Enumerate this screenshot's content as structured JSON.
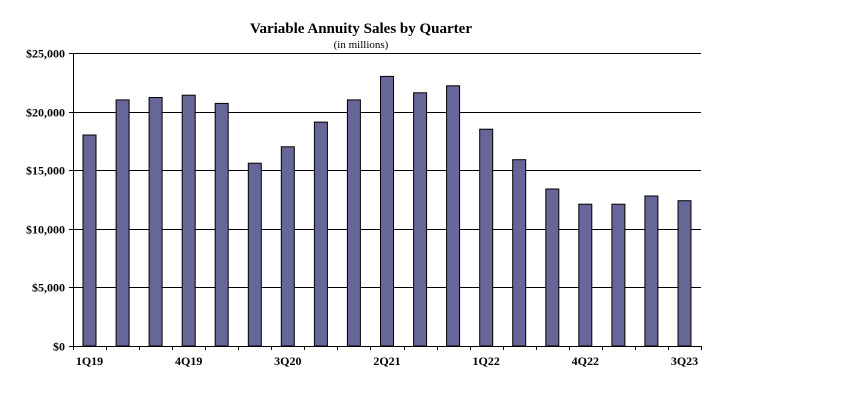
{
  "chart_data": {
    "type": "bar",
    "title": "Variable Annuity Sales by Quarter",
    "subtitle": "(in millions)",
    "xlabel": "",
    "ylabel": "",
    "ylim": [
      0,
      25000
    ],
    "yticks": [
      0,
      5000,
      10000,
      15000,
      20000,
      25000
    ],
    "ytick_labels": [
      "$0",
      "$5,000",
      "$10,000",
      "$15,000",
      "$20,000",
      "$25,000"
    ],
    "grid": "horizontal",
    "legend": "none",
    "categories": [
      "1Q19",
      "2Q19",
      "3Q19",
      "4Q19",
      "1Q20",
      "2Q20",
      "3Q20",
      "4Q20",
      "1Q21",
      "2Q21",
      "3Q21",
      "4Q21",
      "1Q22",
      "2Q22",
      "3Q22",
      "4Q22",
      "1Q23",
      "2Q23",
      "3Q23"
    ],
    "xtick_labels_shown": [
      "1Q19",
      "",
      "",
      "4Q19",
      "",
      "",
      "3Q20",
      "",
      "",
      "2Q21",
      "",
      "",
      "1Q22",
      "",
      "",
      "4Q22",
      "",
      "",
      "3Q23"
    ],
    "values": [
      18000,
      21000,
      21200,
      21400,
      20700,
      15600,
      17000,
      19100,
      21000,
      23000,
      21600,
      22200,
      18500,
      15900,
      13400,
      12100,
      12100,
      12800,
      12400
    ],
    "bar_color": "#666699",
    "bar_edge_color": "#000000"
  }
}
